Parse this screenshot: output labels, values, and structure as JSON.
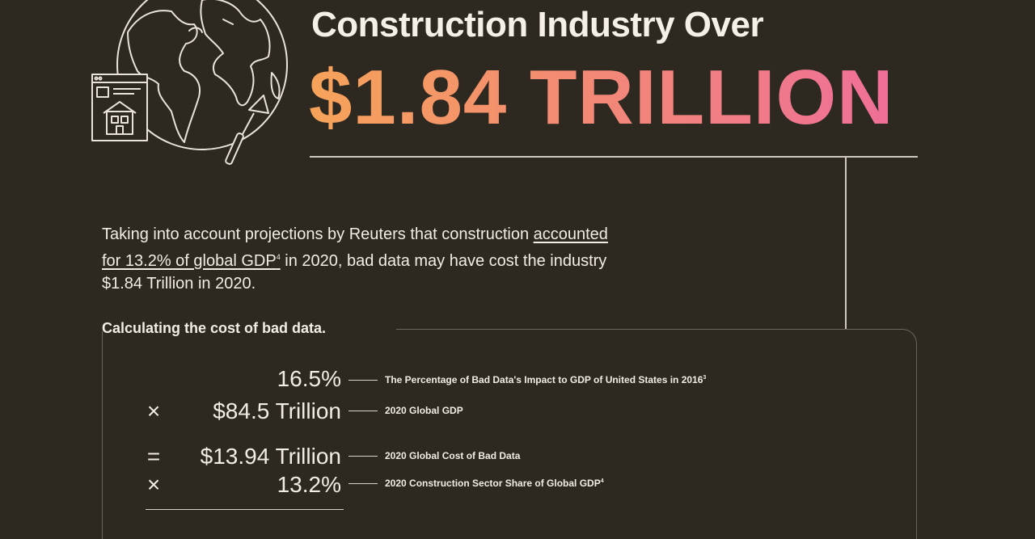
{
  "header": {
    "headline": "Construction Industry Over",
    "amount": "$1.84 TRILLION"
  },
  "intro": {
    "text_before": "Taking into account projections by Reuters that construction ",
    "link_text": "accounted for 13.2% of global GDP",
    "link_sup": "4",
    "text_after": " in 2020, bad data may have cost the industry $1.84 Trillion in 2020."
  },
  "calculation": {
    "title": "Calculating the cost of bad data.",
    "rows": [
      {
        "op": "",
        "value": "16.5%",
        "label": "The Percentage of Bad Data's Impact to GDP of United States in 2016",
        "sup": "3"
      },
      {
        "op": "×",
        "value": "$84.5 Trillion",
        "label": "2020 Global GDP",
        "sup": ""
      },
      {
        "op": "=",
        "value": "$13.94 Trillion",
        "label": "2020 Global Cost of Bad Data",
        "sup": ""
      },
      {
        "op": "×",
        "value": "13.2%",
        "label": "2020 Construction Sector Share of Global GDP",
        "sup": "4"
      }
    ]
  },
  "illustration": {
    "icons": [
      "globe-icon",
      "building-listing-icon",
      "trowel-icon"
    ],
    "stroke_color": "#e9e3d8"
  }
}
